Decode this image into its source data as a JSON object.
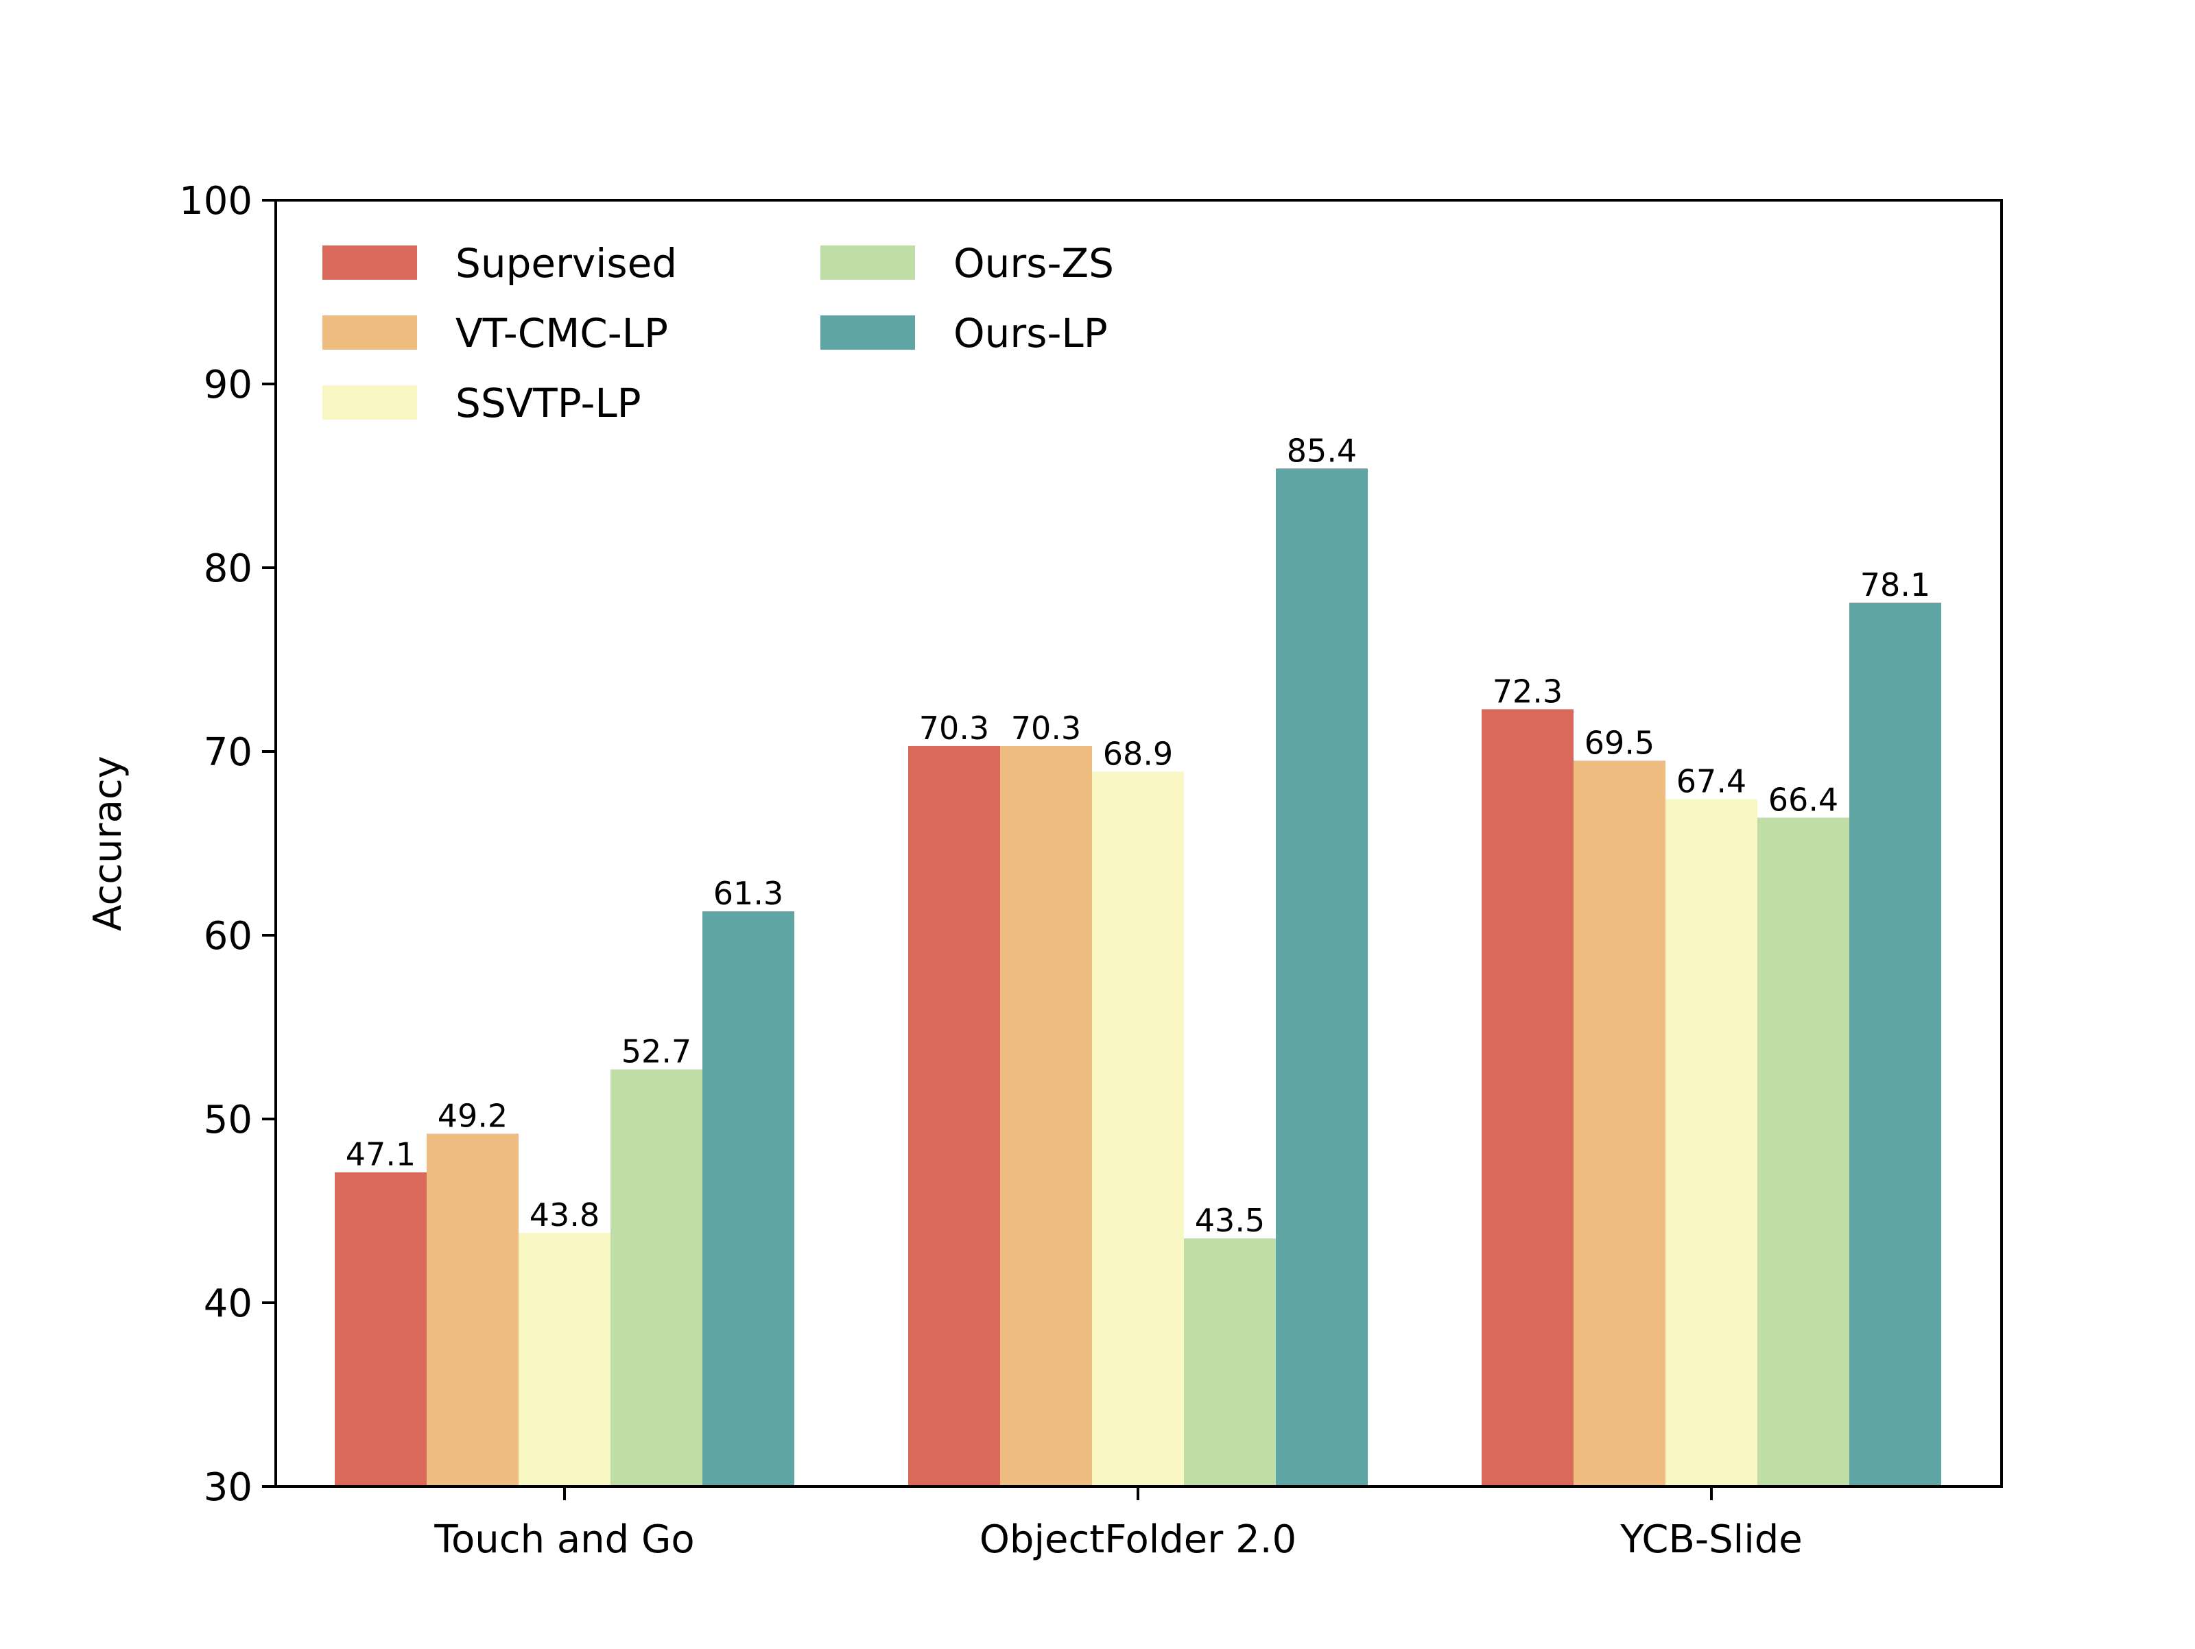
{
  "chart_data": {
    "type": "bar",
    "title": "",
    "xlabel": "",
    "ylabel": "Accuracy",
    "ylim": [
      30,
      100
    ],
    "yticks": [
      30,
      40,
      50,
      60,
      70,
      80,
      90,
      100
    ],
    "grid": false,
    "legend_position": "top-left",
    "categories": [
      "Touch and Go",
      "ObjectFolder 2.0",
      "YCB-Slide"
    ],
    "series": [
      {
        "name": "Supervised",
        "color": "#d9695a",
        "values": [
          47.1,
          70.3,
          72.3
        ]
      },
      {
        "name": "VT-CMC-LP",
        "color": "#efbd7f",
        "values": [
          49.2,
          70.3,
          69.5
        ]
      },
      {
        "name": "SSVTP-LP",
        "color": "#f9f7c3",
        "values": [
          43.8,
          68.9,
          67.4
        ]
      },
      {
        "name": "Ours-ZS",
        "color": "#bfdea7",
        "values": [
          52.7,
          43.5,
          66.4
        ]
      },
      {
        "name": "Ours-LP",
        "color": "#5ea5a3",
        "values": [
          61.3,
          85.4,
          78.1
        ]
      }
    ]
  }
}
